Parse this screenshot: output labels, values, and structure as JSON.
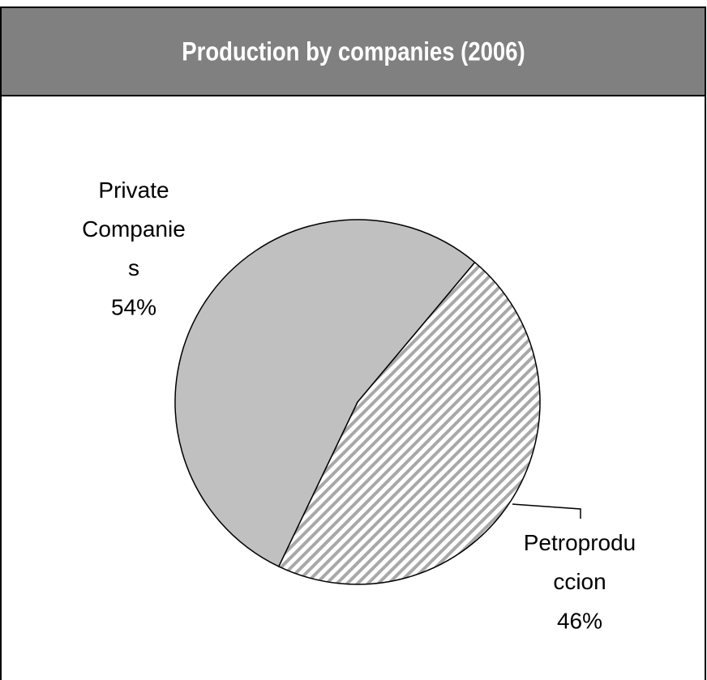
{
  "chart_data": {
    "type": "pie",
    "title": "Production by companies (2006)",
    "categories": [
      "Petroproduccion",
      "Private Companies"
    ],
    "values": [
      46,
      54
    ],
    "value_labels": [
      "46%",
      "54%"
    ],
    "colors": [
      "#a8a8a8",
      "#c0c0c0"
    ],
    "hatch": [
      true,
      false
    ],
    "start_angle": 40
  }
}
